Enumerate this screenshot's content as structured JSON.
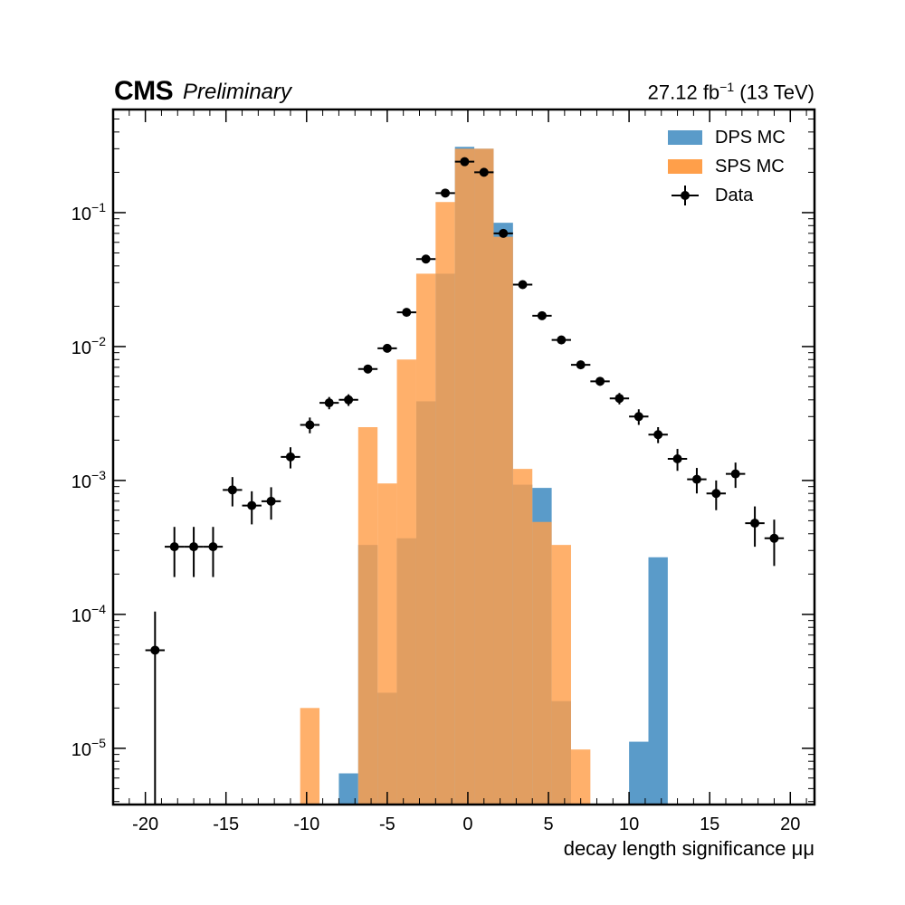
{
  "header": {
    "experiment": "CMS",
    "status": "Preliminary",
    "lumi_value": "27.12 fb",
    "lumi_exp": "−1",
    "lumi_energy": " (13 TeV)"
  },
  "colors": {
    "dps": "#5a9bc9",
    "sps": "#ff9f4a",
    "overlap": "#d28a44",
    "data": "#000000"
  },
  "chart_data": {
    "type": "bar",
    "xlabel": "decay length significance μμ",
    "ylabel": "",
    "xlim": [
      -22,
      21.5
    ],
    "ylim_log10": [
      -5.42,
      -0.23
    ],
    "yscale": "log",
    "x_ticks": [
      -20,
      -15,
      -10,
      -5,
      0,
      5,
      10,
      15,
      20
    ],
    "x_tick_labels": [
      "-20",
      "-15",
      "-10",
      "-5",
      "0",
      "5",
      "10",
      "15",
      "20"
    ],
    "y_ticks_log10": [
      -5,
      -4,
      -3,
      -2,
      -1
    ],
    "y_tick_labels": [
      {
        "base": "10",
        "exp": "−5"
      },
      {
        "base": "10",
        "exp": "−4"
      },
      {
        "base": "10",
        "exp": "−3"
      },
      {
        "base": "10",
        "exp": "−2"
      },
      {
        "base": "10",
        "exp": "−1"
      }
    ],
    "legend_position": "top-right",
    "legend": [
      "DPS MC",
      "SPS MC",
      "Data"
    ],
    "bin_edges": [
      -10.8,
      -9.6,
      -8.4,
      -7.2,
      -6.0,
      -4.8,
      -3.6,
      -2.4,
      -1.2,
      0.0,
      1.2,
      2.4,
      3.6,
      4.8,
      6.0,
      7.2,
      8.4,
      9.6,
      10.8,
      12.0
    ],
    "hist_bins_start": -10.4,
    "hist_bin_width": 1.2,
    "series": [
      {
        "name": "DPS MC",
        "bins": [
          {
            "lo": -8.0,
            "hi": -6.8,
            "value": 6.5e-06
          },
          {
            "lo": -6.8,
            "hi": -5.6,
            "value": 0.00033
          },
          {
            "lo": -5.6,
            "hi": -4.4,
            "value": 2.6e-05
          },
          {
            "lo": -4.4,
            "hi": -3.2,
            "value": 0.00037
          },
          {
            "lo": -3.2,
            "hi": -2.0,
            "value": 0.0039
          },
          {
            "lo": -2.0,
            "hi": -0.8,
            "value": 0.035
          },
          {
            "lo": -0.8,
            "hi": 0.4,
            "value": 0.31
          },
          {
            "lo": 0.4,
            "hi": 1.6,
            "value": 0.3
          },
          {
            "lo": 1.6,
            "hi": 2.8,
            "value": 0.084
          },
          {
            "lo": 2.8,
            "hi": 4.0,
            "value": 0.00093
          },
          {
            "lo": 4.0,
            "hi": 5.2,
            "value": 0.00088
          },
          {
            "lo": 5.2,
            "hi": 6.4,
            "value": 2.25e-05
          },
          {
            "lo": 10.0,
            "hi": 11.2,
            "value": 1.12e-05
          },
          {
            "lo": 11.2,
            "hi": 12.4,
            "value": 0.000267
          }
        ]
      },
      {
        "name": "SPS MC",
        "bins": [
          {
            "lo": -10.4,
            "hi": -9.2,
            "value": 2e-05
          },
          {
            "lo": -6.8,
            "hi": -5.6,
            "value": 0.0025
          },
          {
            "lo": -5.6,
            "hi": -4.4,
            "value": 0.00095
          },
          {
            "lo": -4.4,
            "hi": -3.2,
            "value": 0.008
          },
          {
            "lo": -3.2,
            "hi": -2.0,
            "value": 0.035
          },
          {
            "lo": -2.0,
            "hi": -0.8,
            "value": 0.12
          },
          {
            "lo": -0.8,
            "hi": 0.4,
            "value": 0.3
          },
          {
            "lo": 0.4,
            "hi": 1.6,
            "value": 0.3
          },
          {
            "lo": 1.6,
            "hi": 2.8,
            "value": 0.066
          },
          {
            "lo": 2.8,
            "hi": 4.0,
            "value": 0.00122
          },
          {
            "lo": 4.0,
            "hi": 5.2,
            "value": 0.00049
          },
          {
            "lo": 5.2,
            "hi": 6.4,
            "value": 0.00033
          },
          {
            "lo": 6.4,
            "hi": 7.6,
            "value": 9.8e-06
          }
        ]
      },
      {
        "name": "Data",
        "points": [
          {
            "x": -19.4,
            "y": 5.4e-05,
            "ylo": 3.5e-06,
            "yhi": 0.000105
          },
          {
            "x": -18.2,
            "y": 0.00032,
            "ylo": 0.00019,
            "yhi": 0.00045
          },
          {
            "x": -17.0,
            "y": 0.00032,
            "ylo": 0.00019,
            "yhi": 0.00045
          },
          {
            "x": -15.8,
            "y": 0.00032,
            "ylo": 0.00019,
            "yhi": 0.00045
          },
          {
            "x": -14.6,
            "y": 0.00085,
            "ylo": 0.00064,
            "yhi": 0.00106
          },
          {
            "x": -13.4,
            "y": 0.00065,
            "ylo": 0.00047,
            "yhi": 0.00083
          },
          {
            "x": -12.2,
            "y": 0.0007,
            "ylo": 0.00051,
            "yhi": 0.00089
          },
          {
            "x": -11.0,
            "y": 0.0015,
            "ylo": 0.00123,
            "yhi": 0.00177
          },
          {
            "x": -9.8,
            "y": 0.0026,
            "ylo": 0.00225,
            "yhi": 0.00295
          },
          {
            "x": -8.6,
            "y": 0.0038,
            "ylo": 0.0034,
            "yhi": 0.0042
          },
          {
            "x": -7.4,
            "y": 0.004,
            "ylo": 0.0036,
            "yhi": 0.0044
          },
          {
            "x": -6.2,
            "y": 0.0068,
            "ylo": 0.0063,
            "yhi": 0.0073
          },
          {
            "x": -5.0,
            "y": 0.0097,
            "ylo": 0.0092,
            "yhi": 0.0102
          },
          {
            "x": -3.8,
            "y": 0.018,
            "ylo": 0.0174,
            "yhi": 0.0186
          },
          {
            "x": -2.6,
            "y": 0.045,
            "ylo": 0.044,
            "yhi": 0.046
          },
          {
            "x": -1.4,
            "y": 0.14,
            "ylo": 0.138,
            "yhi": 0.142
          },
          {
            "x": -0.2,
            "y": 0.24,
            "ylo": 0.237,
            "yhi": 0.243
          },
          {
            "x": 1.0,
            "y": 0.2,
            "ylo": 0.197,
            "yhi": 0.203
          },
          {
            "x": 2.2,
            "y": 0.07,
            "ylo": 0.069,
            "yhi": 0.071
          },
          {
            "x": 3.4,
            "y": 0.029,
            "ylo": 0.0284,
            "yhi": 0.0296
          },
          {
            "x": 4.6,
            "y": 0.017,
            "ylo": 0.0165,
            "yhi": 0.0175
          },
          {
            "x": 5.8,
            "y": 0.0112,
            "ylo": 0.0107,
            "yhi": 0.0117
          },
          {
            "x": 7.0,
            "y": 0.0073,
            "ylo": 0.0069,
            "yhi": 0.0077
          },
          {
            "x": 8.2,
            "y": 0.0055,
            "ylo": 0.0051,
            "yhi": 0.0059
          },
          {
            "x": 9.4,
            "y": 0.0041,
            "ylo": 0.0037,
            "yhi": 0.0045
          },
          {
            "x": 10.6,
            "y": 0.003,
            "ylo": 0.0026,
            "yhi": 0.0034
          },
          {
            "x": 11.8,
            "y": 0.0022,
            "ylo": 0.0019,
            "yhi": 0.0025
          },
          {
            "x": 13.0,
            "y": 0.00145,
            "ylo": 0.00118,
            "yhi": 0.00172
          },
          {
            "x": 14.2,
            "y": 0.00102,
            "ylo": 0.0008,
            "yhi": 0.00124
          },
          {
            "x": 15.4,
            "y": 0.0008,
            "ylo": 0.0006,
            "yhi": 0.001
          },
          {
            "x": 16.6,
            "y": 0.00112,
            "ylo": 0.00088,
            "yhi": 0.00136
          },
          {
            "x": 17.8,
            "y": 0.00048,
            "ylo": 0.00032,
            "yhi": 0.00064
          },
          {
            "x": 19.0,
            "y": 0.00037,
            "ylo": 0.00023,
            "yhi": 0.00051
          }
        ],
        "x_halfwidth": 0.6
      }
    ]
  }
}
